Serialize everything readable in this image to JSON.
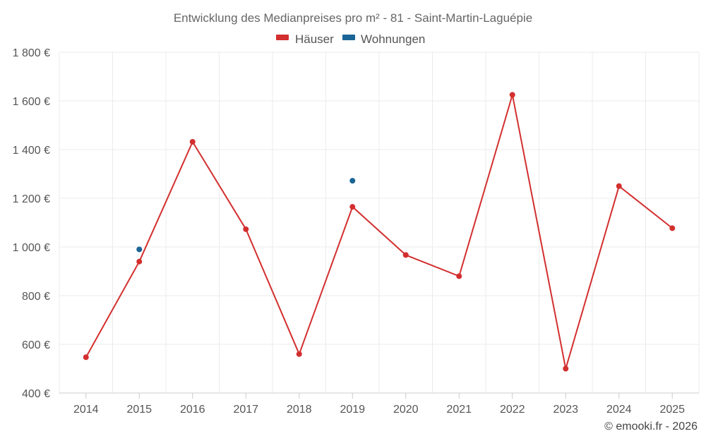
{
  "chart_data": {
    "type": "line",
    "title": "Entwicklung des Medianpreises pro m² - 81 - Saint-Martin-Laguépie",
    "x": [
      "2014",
      "2015",
      "2016",
      "2017",
      "2018",
      "2019",
      "2020",
      "2021",
      "2022",
      "2023",
      "2024",
      "2025"
    ],
    "series": [
      {
        "name": "Häuser",
        "color": "#d32f2f",
        "values": [
          547,
          940,
          1432,
          1073,
          560,
          1165,
          967,
          880,
          1625,
          500,
          1250,
          1077
        ]
      },
      {
        "name": "Wohnungen",
        "color": "#1a6496",
        "values": [
          null,
          990,
          null,
          null,
          null,
          1272,
          null,
          null,
          null,
          null,
          null,
          null
        ]
      }
    ],
    "ylim": [
      400,
      1800
    ],
    "yticks": [
      400,
      600,
      800,
      1000,
      1200,
      1400,
      1600,
      1800
    ],
    "ytick_labels": [
      "400 €",
      "600 €",
      "800 €",
      "1 000 €",
      "1 200 €",
      "1 400 €",
      "1 600 €",
      "1 800 €"
    ],
    "legend_position": "top-center",
    "grid": true
  },
  "credit": "© emooki.fr - 2026"
}
